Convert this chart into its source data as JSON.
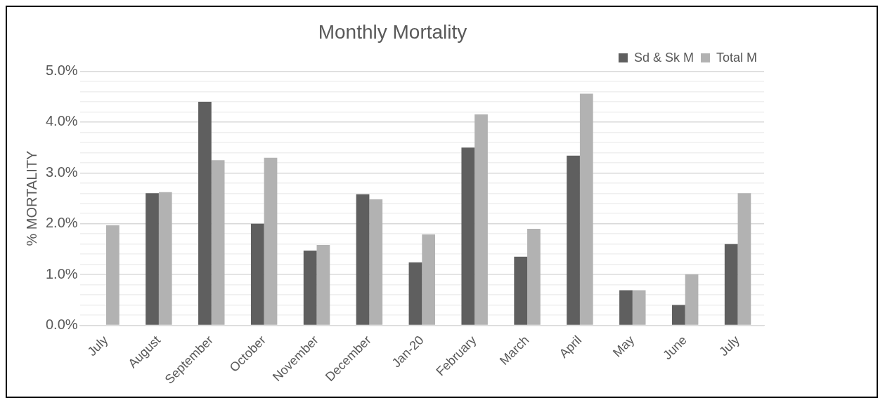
{
  "chart_data": {
    "type": "bar",
    "title": "Monthly Mortality",
    "ylabel": "% MORTALITY",
    "categories": [
      "July",
      "August",
      "September",
      "October",
      "November",
      "December",
      "Jan-20",
      "February",
      "March",
      "April",
      "May",
      "June",
      "July"
    ],
    "series": [
      {
        "name": "Sd & Sk M",
        "color": "#5f5f5f",
        "values": [
          null,
          2.6,
          4.4,
          2.0,
          1.47,
          2.58,
          1.24,
          3.5,
          1.35,
          3.34,
          0.69,
          0.4,
          1.6
        ]
      },
      {
        "name": "Total M",
        "color": "#b2b2b2",
        "values": [
          1.97,
          2.62,
          3.25,
          3.3,
          1.58,
          2.48,
          1.79,
          4.15,
          1.9,
          4.56,
          0.69,
          1.0,
          2.6
        ]
      }
    ],
    "ylim": [
      0,
      5
    ],
    "yticks": [
      {
        "value": 0,
        "label": "0.0%"
      },
      {
        "value": 0.2,
        "label": null
      },
      {
        "value": 0.4,
        "label": null
      },
      {
        "value": 0.6,
        "label": null
      },
      {
        "value": 0.8,
        "label": null
      },
      {
        "value": 1,
        "label": "1.0%"
      },
      {
        "value": 1.2,
        "label": null
      },
      {
        "value": 1.4,
        "label": null
      },
      {
        "value": 1.6,
        "label": null
      },
      {
        "value": 1.8,
        "label": null
      },
      {
        "value": 2,
        "label": "2.0%"
      },
      {
        "value": 2.2,
        "label": null
      },
      {
        "value": 2.4,
        "label": null
      },
      {
        "value": 2.6,
        "label": null
      },
      {
        "value": 2.8,
        "label": null
      },
      {
        "value": 3,
        "label": "3.0%"
      },
      {
        "value": 3.2,
        "label": null
      },
      {
        "value": 3.4,
        "label": null
      },
      {
        "value": 3.6,
        "label": null
      },
      {
        "value": 3.8,
        "label": null
      },
      {
        "value": 4,
        "label": "4.0%"
      },
      {
        "value": 4.2,
        "label": null
      },
      {
        "value": 4.4,
        "label": null
      },
      {
        "value": 4.6,
        "label": null
      },
      {
        "value": 4.8,
        "label": null
      },
      {
        "value": 5,
        "label": "5.0%"
      }
    ],
    "grid": "y",
    "legend": "top right"
  }
}
